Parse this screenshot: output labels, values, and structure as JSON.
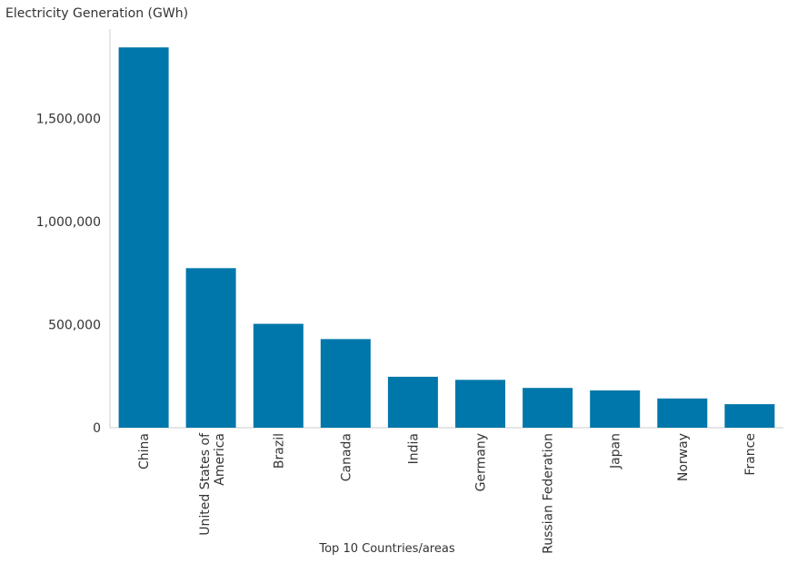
{
  "chart_data": {
    "type": "bar",
    "ylabel": "Electricity Generation (GWh)",
    "xlabel": "Top 10 Countries/areas",
    "categories": [
      "China",
      "United States of America",
      "Brazil",
      "Canada",
      "India",
      "Germany",
      "Russian Federation",
      "Japan",
      "Norway",
      "France"
    ],
    "values": [
      1845000,
      774000,
      504000,
      430000,
      247000,
      232000,
      193000,
      181000,
      142000,
      114000
    ],
    "ylim": [
      0,
      1930000
    ],
    "yticks": [
      0,
      500000,
      1000000,
      1500000
    ],
    "ytick_labels": [
      "0",
      "500,000",
      "1,000,000",
      "1,500,000"
    ],
    "grid": false,
    "legend": "none",
    "bar_color": "#0077aa"
  }
}
